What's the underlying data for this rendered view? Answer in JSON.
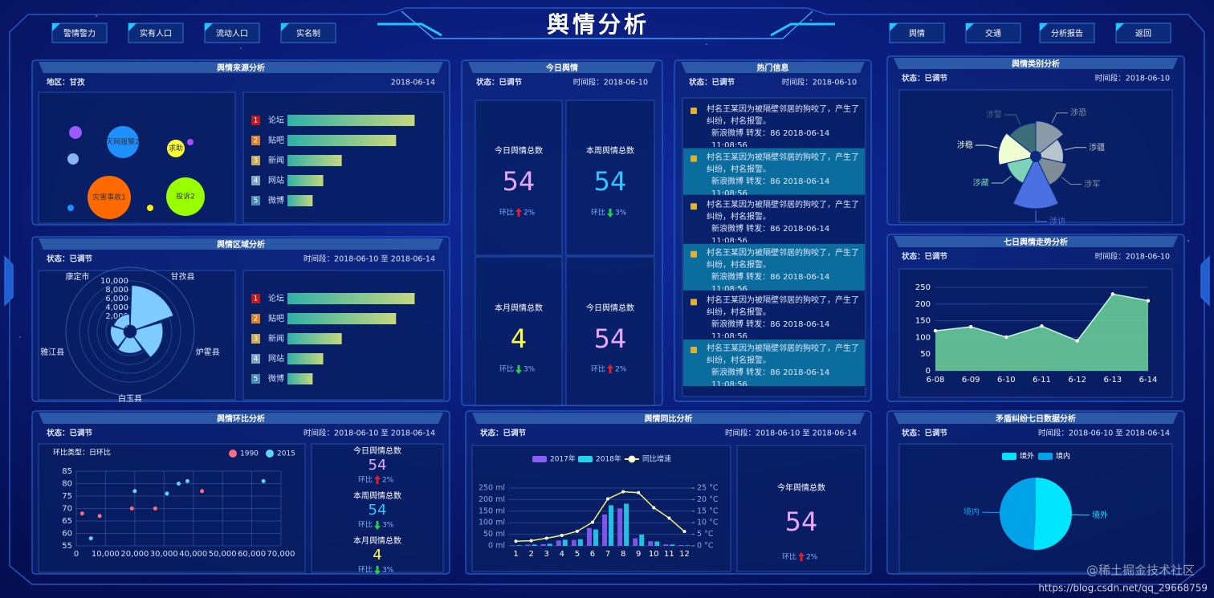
{
  "header": {
    "title": "舆情分析",
    "nav_left": [
      "警情警力",
      "实有人口",
      "流动人口",
      "实名制"
    ],
    "nav_right": [
      "舆情",
      "交通",
      "分析报告",
      "返回"
    ]
  },
  "panels": [
    {
      "title": "舆情来源分析",
      "status": "地区：甘孜",
      "time": "2018-06-14"
    },
    {
      "title": "舆情区域分析",
      "status": "状态：已调节",
      "time": "时间段：2018-06-10 至 2018-06-14"
    },
    {
      "title": "舆情环比分析",
      "status": "状态：已调节",
      "time": "时间段：2018-06-10 至 2018-06-14",
      "stats": [
        {
          "label": "今日舆情总数",
          "value": 54,
          "color": "#e8a8ff",
          "ratio_label": "环比",
          "ratio": "2%",
          "trend": "up"
        },
        {
          "label": "本周舆情总数",
          "value": 54,
          "color": "#33c5ff",
          "ratio_label": "环比",
          "ratio": "3%",
          "trend": "down"
        },
        {
          "label": "本月舆情总数",
          "value": 4,
          "color": "#ffff3a",
          "ratio_label": "环比",
          "ratio": "3%",
          "trend": "down"
        }
      ]
    },
    {
      "title": "今日舆情",
      "status": "状态：已调节",
      "time": "时间段：2018-06-10",
      "stats": [
        {
          "label": "今日舆情总数",
          "value": 54,
          "color": "#e8a8ff",
          "ratio_label": "环比",
          "ratio": "2%",
          "trend": "up"
        },
        {
          "label": "本周舆情总数",
          "value": 54,
          "color": "#33c5ff",
          "ratio_label": "环比",
          "ratio": "3%",
          "trend": "down"
        },
        {
          "label": "本月舆情总数",
          "value": 4,
          "color": "#ffff3a",
          "ratio_label": "环比",
          "ratio": "3%",
          "trend": "down"
        },
        {
          "label": "今日舆情总数",
          "value": 54,
          "color": "#e8a8ff",
          "ratio_label": "环比",
          "ratio": "2%",
          "trend": "up"
        }
      ]
    },
    {
      "title": "热门信息",
      "status": "状态：已调节",
      "time": "时间段：2018-06-10"
    },
    {
      "title": "舆情同比分析",
      "status": "状态：已调节",
      "time": "时间段：2018-06-10 至 2018-06-14",
      "stats": [
        {
          "label": "今年舆情总数",
          "value": 54,
          "color": "#e8a8ff",
          "ratio_label": "环比",
          "ratio": "2%",
          "trend": "up"
        }
      ]
    },
    {
      "title": "舆情类别分析",
      "status": "状态：已调节",
      "time": "时间段：2018-06-10"
    },
    {
      "title": "七日舆情走势分析",
      "status": "状态：已调节",
      "time": "时间段：2018-06-10"
    },
    {
      "title": "矛盾纠纷七日数据分析",
      "status": "状态：已调节",
      "time": "时间段：2018-06-10 至 2018-06-14"
    }
  ],
  "hot_news": [
    {
      "text": "村名王某因为被隔壁邻居的狗咬了，产生了纠纷，村名报警。",
      "meta": "新浪微博 转发：86 2018-06-14 11:08:56"
    },
    {
      "text": "村名王某因为被隔壁邻居的狗咬了，产生了纠纷，村名报警。",
      "meta": "新浪微博 转发：86 2018-06-14 11:08:56"
    },
    {
      "text": "村名王某因为被隔壁邻居的狗咬了，产生了纠纷，村名报警。",
      "meta": "新浪微博 转发：86 2018-06-14 11:08:56"
    },
    {
      "text": "村名王某因为被隔壁邻居的狗咬了，产生了纠纷，村名报警。",
      "meta": "新浪微博 转发：86 2018-06-14 11:08:56"
    },
    {
      "text": "村名王某因为被隔壁邻居的狗咬了，产生了纠纷，村名报警。",
      "meta": "新浪微博 转发：86 2018-06-14 11:08:56"
    },
    {
      "text": "村名王某因为被隔壁邻居的狗咬了，产生了纠纷，村名报警。",
      "meta": "新浪微博 转发：86 2018-06-14 11:08:56"
    }
  ],
  "watermark": {
    "site": "@稀土掘金技术社区",
    "url": "https://blog.csdn.net/qq_29668759"
  },
  "chart_data": [
    {
      "type": "bubble",
      "categories": [
        "天网报警2",
        "求助",
        "灾害事故1",
        "投诉2",
        null,
        null,
        null,
        null,
        null
      ],
      "values": [
        20,
        11,
        27,
        24,
        8,
        7,
        4,
        4,
        4
      ],
      "colors": [
        "#1e90ff",
        "#ffff33",
        "#ff6a00",
        "#99ff00",
        "#9b59ff",
        "#8ab4f8",
        "#a64dff",
        "#ffee00",
        "#1e90ff"
      ]
    },
    {
      "type": "bar",
      "horizontal": true,
      "ranks": [
        1,
        2,
        3,
        4,
        5
      ],
      "categories": [
        "论坛",
        "贴吧",
        "新闻",
        "网站",
        "微博"
      ],
      "values": [
        96,
        82,
        41,
        27,
        19
      ],
      "xlim": [
        0,
        100
      ],
      "rank_colors": [
        "#c0161c",
        "#d9822b",
        "#c9ac5a",
        "#7da7c4",
        "#4a8db5"
      ]
    },
    {
      "type": "polar",
      "categories": [
        "甘孜县",
        "炉霍县",
        "白玉县",
        "雅江县",
        "康定市"
      ],
      "values": [
        9000,
        6000,
        3500,
        3000,
        2500
      ],
      "color": "#7ecbff",
      "rlim": [
        0,
        10000
      ],
      "rticks": [
        0,
        {
          "value": 2000,
          "label": "2,000"
        },
        {
          "value": 4000,
          "label": "4,000"
        },
        {
          "value": 6000,
          "label": "6,000"
        },
        {
          "value": 8000,
          "label": "8,000"
        },
        {
          "value": 10000,
          "label": "10,000"
        }
      ]
    },
    {
      "type": "bar",
      "horizontal": true,
      "ranks": [
        1,
        2,
        3,
        4,
        5
      ],
      "categories": [
        "论坛",
        "贴吧",
        "新闻",
        "网站",
        "微博"
      ],
      "values": [
        96,
        82,
        41,
        27,
        19
      ],
      "xlim": [
        0,
        100
      ],
      "rank_colors": [
        "#c0161c",
        "#d9822b",
        "#c9ac5a",
        "#7da7c4",
        "#4a8db5"
      ]
    },
    {
      "type": "scatter",
      "subtitle": "环比类型：日环比",
      "series": [
        {
          "name": "1990",
          "color": "#ff6b81",
          "x": [
            2000,
            8000,
            27000,
            43000,
            19000
          ],
          "values": [
            68,
            67,
            70,
            77,
            70
          ]
        },
        {
          "name": "2015",
          "color": "#5ed6f5",
          "x": [
            38000,
            35000,
            64000,
            20000,
            5000,
            31000
          ],
          "values": [
            81,
            80,
            81,
            77,
            58,
            76
          ]
        }
      ],
      "xlim": [
        0,
        70000
      ],
      "xticks": [
        0,
        {
          "value": 10000,
          "label": "10,000"
        },
        {
          "value": 20000,
          "label": "20,000"
        },
        {
          "value": 30000,
          "label": "30,000"
        },
        {
          "value": 40000,
          "label": "40,000"
        },
        {
          "value": 50000,
          "label": "50,000"
        },
        {
          "value": 60000,
          "label": "60,000"
        },
        {
          "value": 70000,
          "label": "70,000"
        }
      ],
      "ylim": [
        55,
        85
      ],
      "yticks": [
        55,
        60,
        65,
        70,
        75,
        80,
        85
      ],
      "grid": true
    },
    {
      "type": "bar",
      "categories": [
        "1",
        "2",
        "3",
        "4",
        "5",
        "6",
        "7",
        "8",
        "9",
        "10",
        "11",
        "12"
      ],
      "series": [
        {
          "name": "2017年",
          "color": "#8b5cf6",
          "values": [
            2.0,
            4.9,
            7.0,
            23.2,
            25.6,
            76.7,
            135.6,
            162.2,
            32.6,
            20.0,
            6.4,
            3.3
          ]
        },
        {
          "name": "2018年",
          "color": "#22d3ee",
          "values": [
            2.6,
            5.9,
            9.0,
            26.4,
            28.7,
            70.7,
            175.6,
            182.2,
            48.7,
            18.8,
            6.0,
            2.3
          ]
        },
        {
          "name": "同比增速",
          "color": "#f4f46a",
          "type": "line",
          "axis": "y2",
          "values": [
            2.0,
            2.2,
            3.3,
            4.5,
            6.3,
            10.2,
            20.3,
            23.4,
            23.0,
            16.5,
            12.0,
            6.2
          ]
        }
      ],
      "ylim": [
        0,
        250
      ],
      "yticks": [
        {
          "value": 0,
          "label": "0 ml"
        },
        {
          "value": 50,
          "label": "50 ml"
        },
        {
          "value": 100,
          "label": "100 ml"
        },
        {
          "value": 150,
          "label": "150 ml"
        },
        {
          "value": 200,
          "label": "200 ml"
        },
        {
          "value": 250,
          "label": "250 ml"
        }
      ],
      "y2lim": [
        0,
        25
      ],
      "y2ticks": [
        {
          "value": 0,
          "label": "0 °C"
        },
        {
          "value": 5,
          "label": "5 °C"
        },
        {
          "value": 10,
          "label": "10 °C"
        },
        {
          "value": 15,
          "label": "15 °C"
        },
        {
          "value": 20,
          "label": "20 °C"
        },
        {
          "value": 25,
          "label": "25 °C"
        }
      ],
      "grid": true
    },
    {
      "type": "pie",
      "rose": true,
      "categories": [
        "涉恐",
        "涉疆",
        "涉军",
        "涉访",
        "涉藏",
        "涉稳",
        "涉警"
      ],
      "values": [
        28,
        20,
        24,
        45,
        22,
        30,
        26
      ],
      "colors": [
        "#8a9aa8",
        "#b8c4cc",
        "#7f8d96",
        "#4a6fe0",
        "#7dd3b8",
        "#f0fcd2",
        "#3d6f7a"
      ]
    },
    {
      "type": "area",
      "categories": [
        "6-08",
        "6-09",
        "6-10",
        "6-11",
        "6-12",
        "6-13",
        "6-14"
      ],
      "values": [
        120,
        132,
        101,
        134,
        90,
        230,
        210
      ],
      "color": "#6fd59a",
      "ylim": [
        0,
        250
      ],
      "yticks": [
        0,
        50,
        100,
        150,
        200,
        250
      ],
      "grid": true
    },
    {
      "type": "pie",
      "categories": [
        "境外",
        "境内"
      ],
      "values": [
        51,
        49
      ],
      "colors": [
        "#00e5ff",
        "#00a2e8"
      ]
    }
  ]
}
